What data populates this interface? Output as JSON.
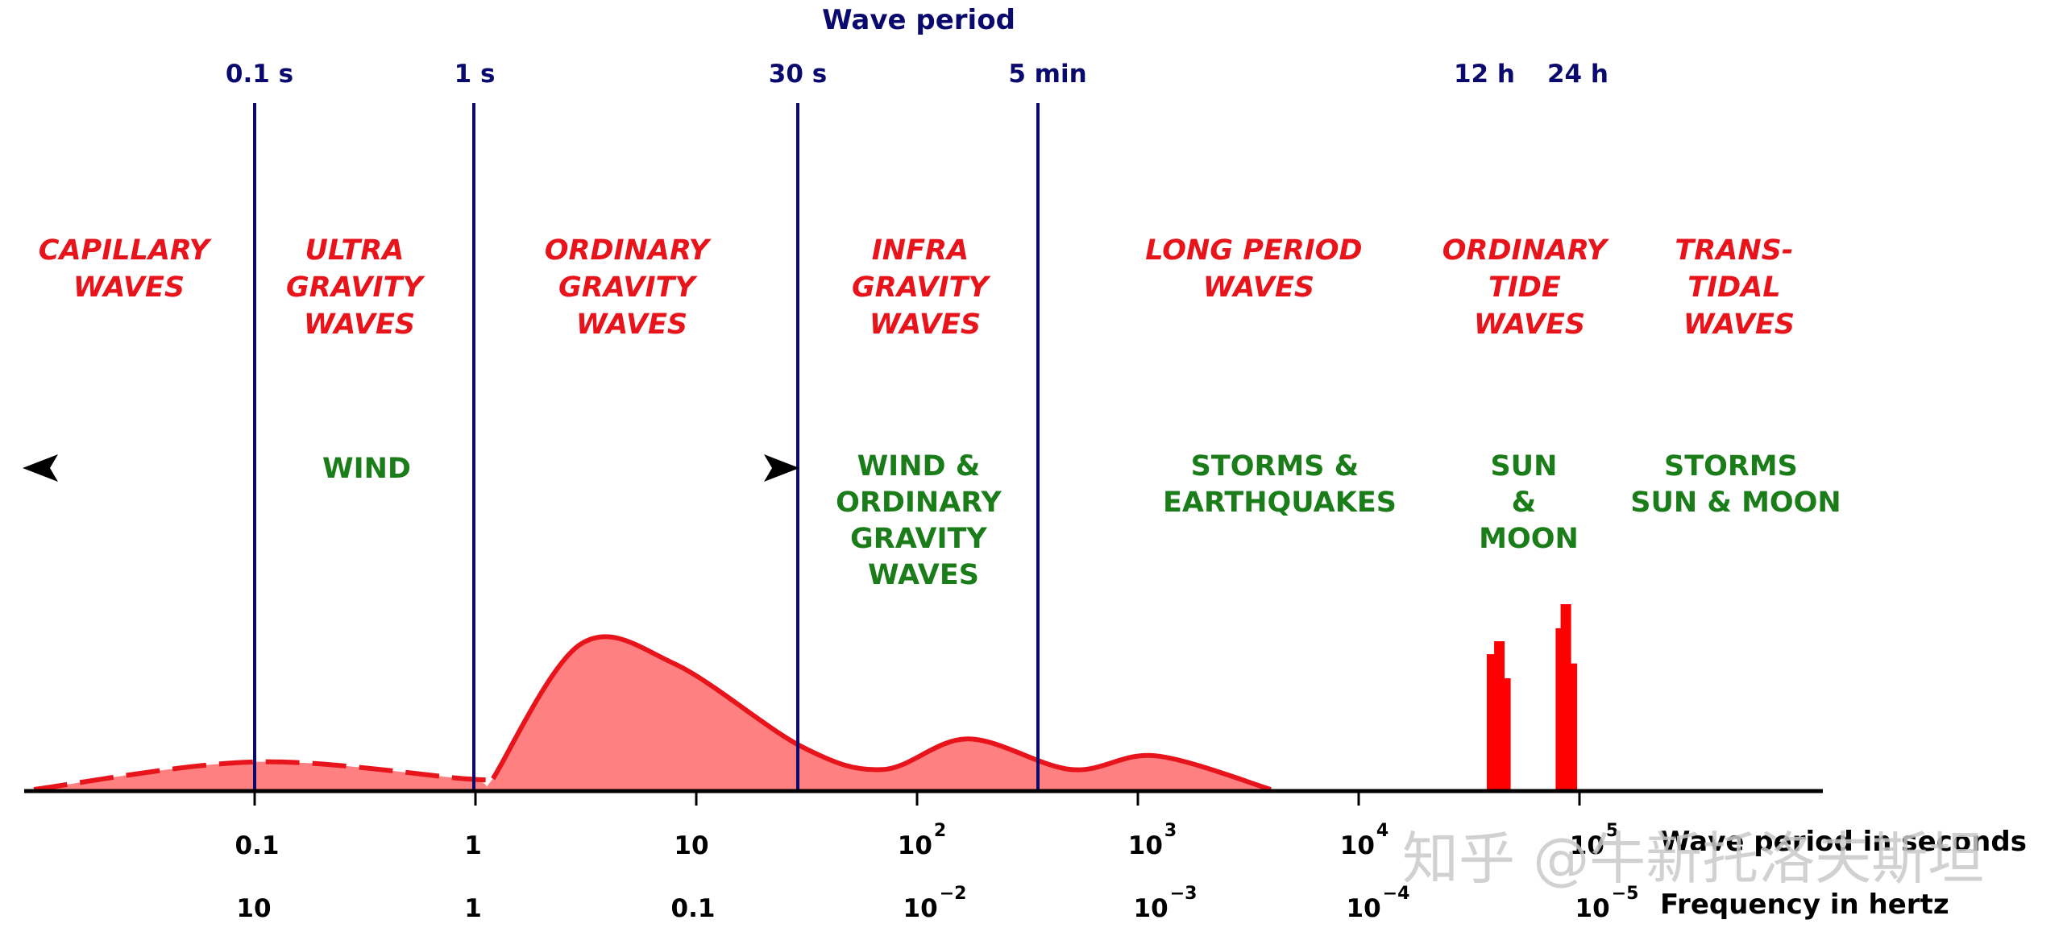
{
  "title": "Wave period",
  "period_markers": [
    "0.1 s",
    "1 s",
    "30 s",
    "5 min",
    "12 h",
    "24 h"
  ],
  "zones": [
    {
      "lines": [
        "CAPILLARY",
        "WAVES"
      ]
    },
    {
      "lines": [
        "ULTRA",
        "GRAVITY",
        "WAVES"
      ]
    },
    {
      "lines": [
        "ORDINARY",
        "GRAVITY",
        "WAVES"
      ]
    },
    {
      "lines": [
        "INFRA",
        "GRAVITY",
        "WAVES"
      ]
    },
    {
      "lines": [
        "LONG PERIOD",
        "WAVES"
      ]
    },
    {
      "lines": [
        "ORDINARY",
        "TIDE",
        "WAVES"
      ]
    },
    {
      "lines": [
        "TRANS-",
        "TIDAL",
        "WAVES"
      ]
    }
  ],
  "causes": [
    {
      "lines": [
        "WIND"
      ]
    },
    {
      "lines": [
        "WIND &",
        "ORDINARY",
        "GRAVITY",
        "WAVES"
      ]
    },
    {
      "lines": [
        "STORMS &",
        "EARTHQUAKES"
      ]
    },
    {
      "lines": [
        "SUN",
        "&",
        "MOON"
      ]
    },
    {
      "lines": [
        "STORMS",
        "SUN & MOON"
      ]
    }
  ],
  "period_ticks": [
    {
      "base": "0.1",
      "exp": ""
    },
    {
      "base": "1",
      "exp": ""
    },
    {
      "base": "10",
      "exp": ""
    },
    {
      "base": "10",
      "exp": "2"
    },
    {
      "base": "10",
      "exp": "3"
    },
    {
      "base": "10",
      "exp": "4"
    },
    {
      "base": "10",
      "exp": "5"
    }
  ],
  "frequency_ticks": [
    {
      "base": "10",
      "exp": ""
    },
    {
      "base": "1",
      "exp": ""
    },
    {
      "base": "0.1",
      "exp": ""
    },
    {
      "base": "10",
      "exp": "−2"
    },
    {
      "base": "10",
      "exp": "−3"
    },
    {
      "base": "10",
      "exp": "−4"
    },
    {
      "base": "10",
      "exp": "−5"
    }
  ],
  "axis_labels": {
    "period": "Wave period in seconds",
    "frequency": "Frequency in hertz"
  },
  "watermark": "知乎 @牛新托洛夫斯坦",
  "colors": {
    "marker_line": "#0a0a6e",
    "zone_text": "#e8141c",
    "cause_text": "#1a7d1a",
    "curve_stroke": "#e8141c",
    "curve_fill": "#ff8080",
    "axis": "#000000"
  },
  "chart_data": {
    "type": "area",
    "x_scale": "log",
    "x_unit": "Wave period in seconds",
    "relative_energy_curve": {
      "x": [
        0.01,
        0.1,
        0.9,
        1.2,
        3,
        8,
        30,
        70,
        170,
        500,
        1200,
        4000
      ],
      "y": [
        0.0,
        0.18,
        0.07,
        0.07,
        0.95,
        0.82,
        0.28,
        0.13,
        0.33,
        0.13,
        0.22,
        0.0
      ],
      "dashed_below_x": 1
    },
    "tidal_bars": [
      {
        "x": 40000,
        "y": 0.73
      },
      {
        "x": 43200,
        "y": 0.8
      },
      {
        "x": 46000,
        "y": 0.6
      },
      {
        "x": 82000,
        "y": 0.87
      },
      {
        "x": 86400,
        "y": 1.0
      },
      {
        "x": 92000,
        "y": 0.68
      }
    ]
  }
}
